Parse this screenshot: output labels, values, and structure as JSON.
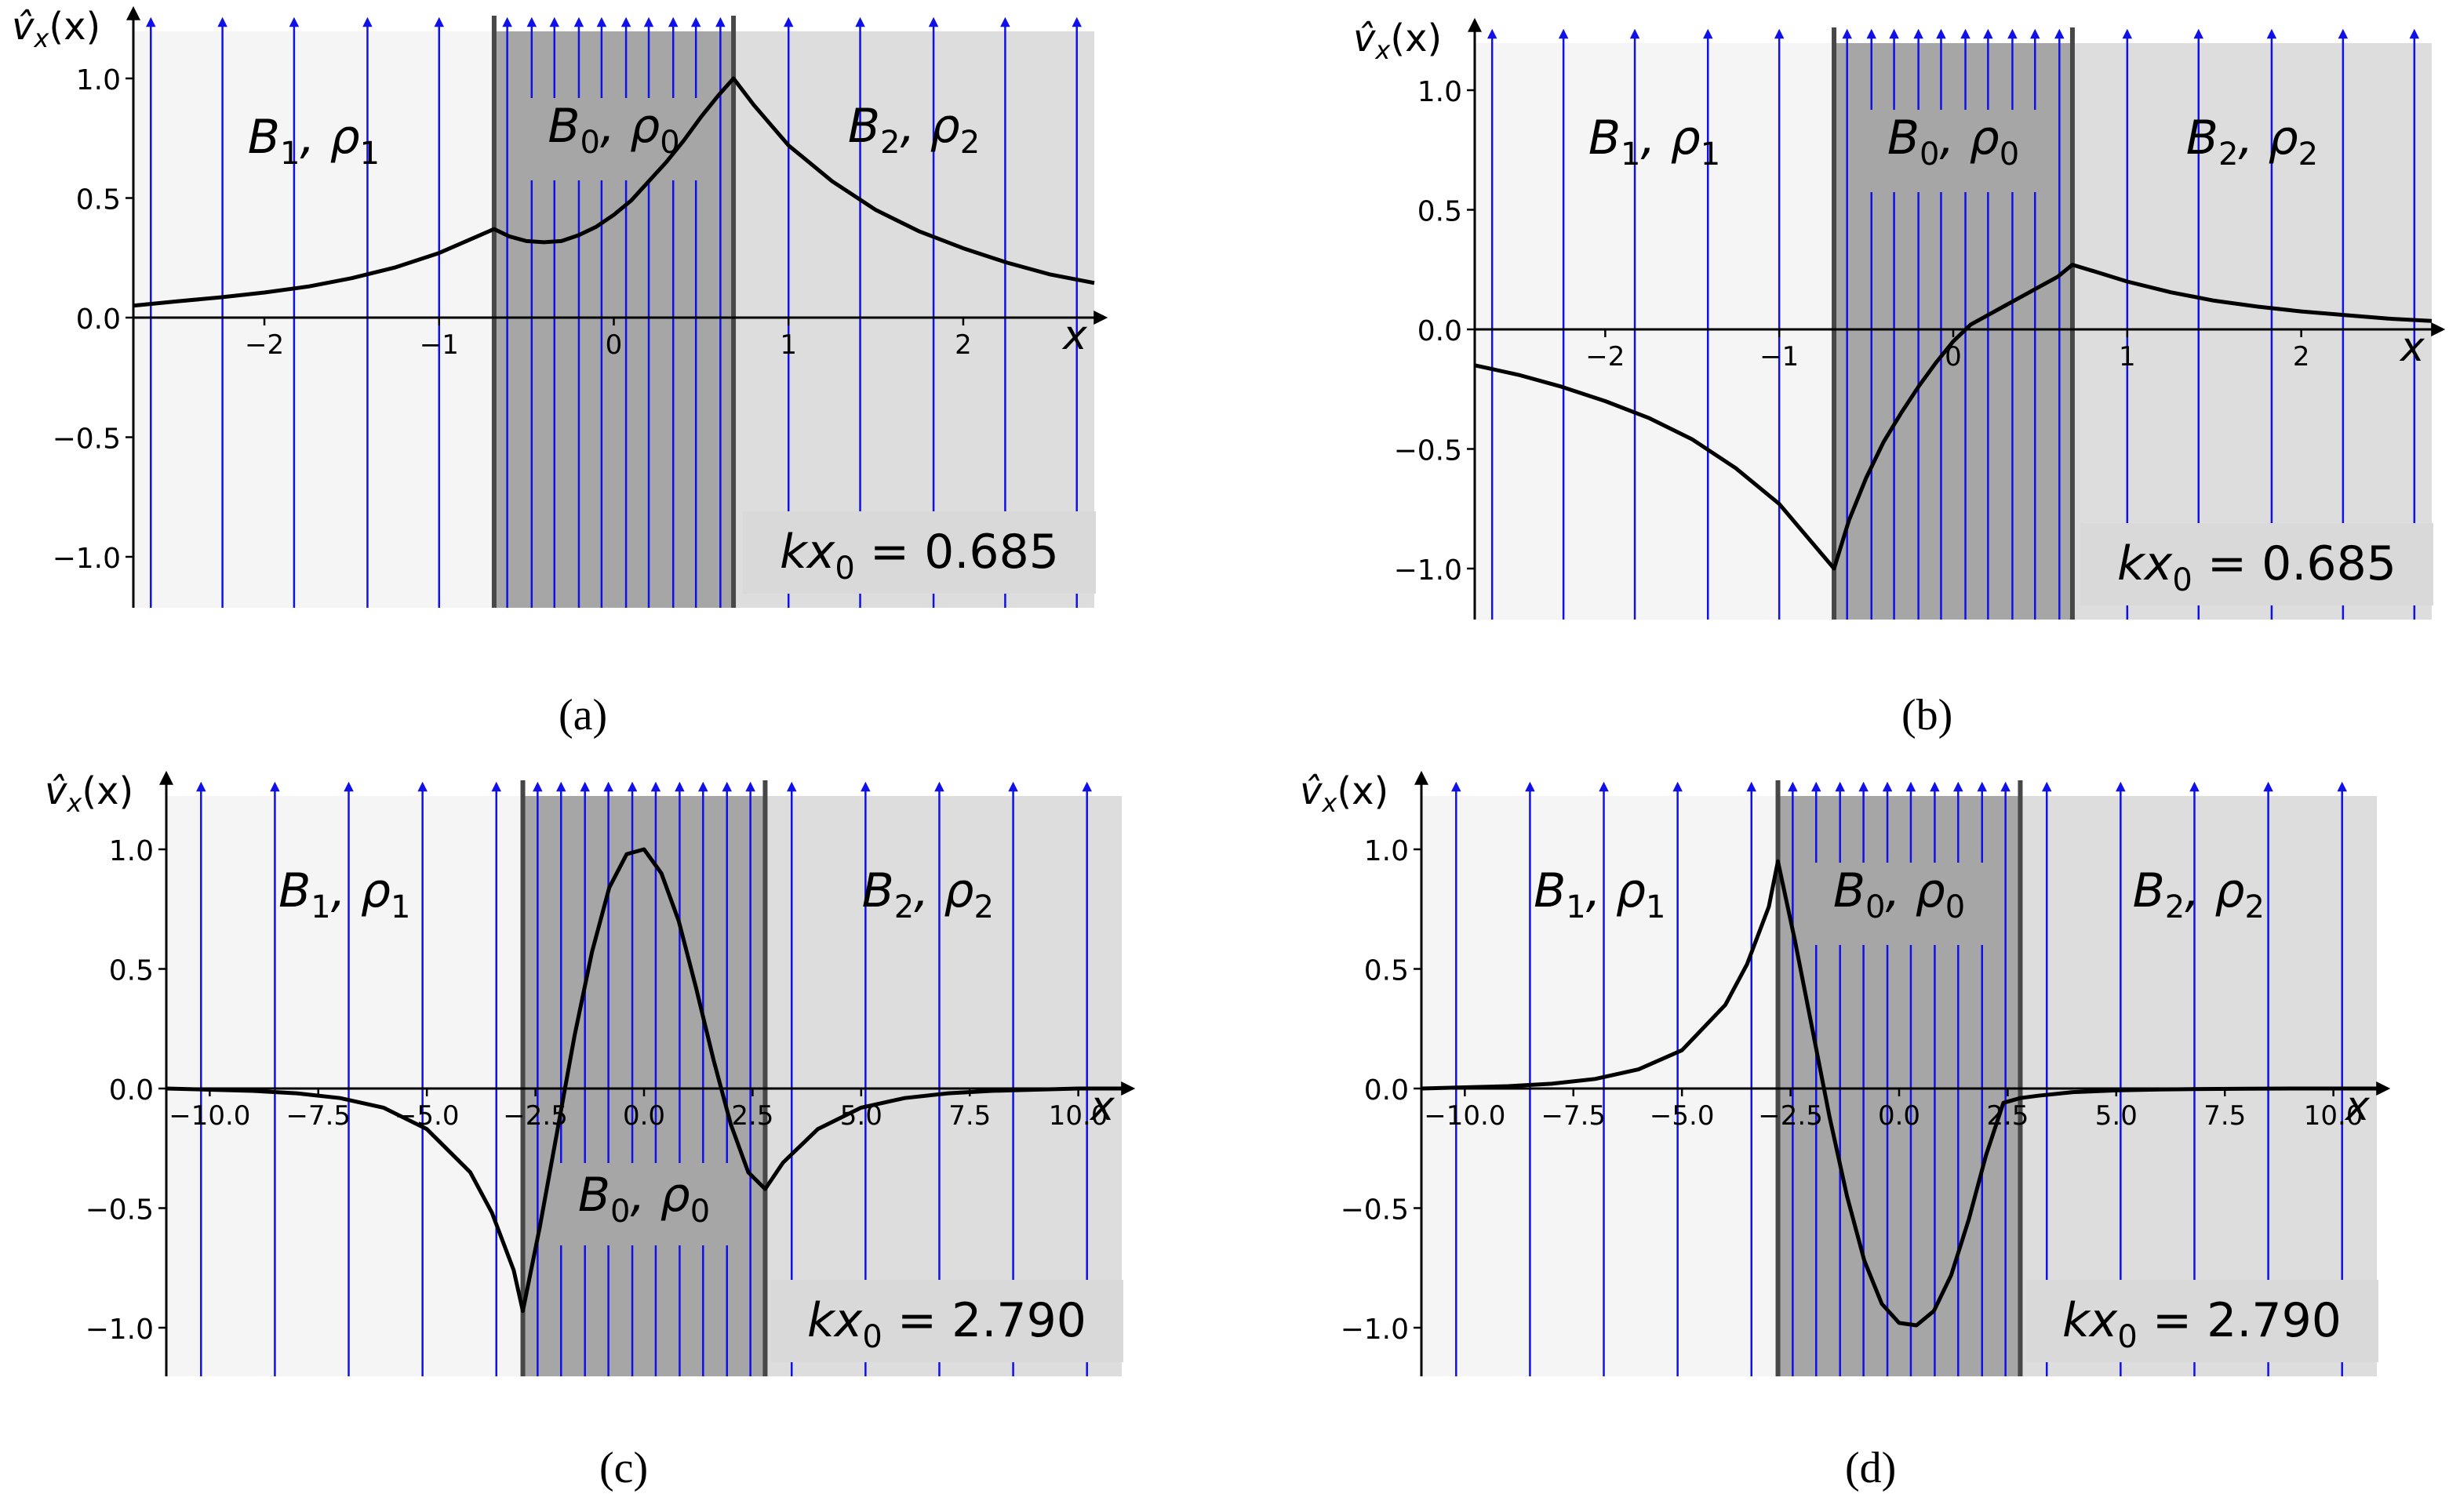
{
  "figure": {
    "captions": [
      "(a)",
      "(b)",
      "(c)",
      "(d)"
    ]
  },
  "colors": {
    "outer_left": "#f5f5f5",
    "outer_right": "#dddddd",
    "middle": "#a6a6a6",
    "field_line": "#1010e8",
    "curve": "#000000",
    "interface": "#474747",
    "kx_box": "#d9d9d9"
  },
  "chart_data": [
    {
      "id": "a",
      "type": "line",
      "ylabel": "v̂x(x)",
      "xlabel": "x",
      "region_labels": {
        "left": "B1, ρ1",
        "middle": "B0, ρ0",
        "right": "B2, ρ2"
      },
      "kx_label": "kx0 = 0.685",
      "xlim": [
        -2.75,
        2.75
      ],
      "ylim": [
        -1.2,
        1.2
      ],
      "interfaces": [
        -0.685,
        0.685
      ],
      "xticks": [
        -2,
        -1,
        0,
        1,
        2
      ],
      "xtick_labels": [
        "−2",
        "−1",
        "0",
        "1",
        "2"
      ],
      "yticks": [
        1.0,
        0.5,
        0.0,
        -0.5,
        -1.0
      ],
      "ytick_labels": [
        "1.0",
        "0.5",
        "0.0",
        "−0.5",
        "−1.0"
      ],
      "field_lines_outer": [
        -2.65,
        -2.24,
        -1.83,
        -1.41,
        -1.0,
        1.0,
        1.41,
        1.83,
        2.24,
        2.65
      ],
      "field_lines_inner": [
        -0.61,
        -0.47,
        -0.34,
        -0.2,
        -0.07,
        0.07,
        0.2,
        0.34,
        0.47,
        0.61
      ],
      "series": [
        {
          "name": "v̂x",
          "x": [
            -2.75,
            -2.5,
            -2.25,
            -2.0,
            -1.75,
            -1.5,
            -1.25,
            -1.0,
            -0.685,
            -0.6,
            -0.5,
            -0.4,
            -0.3,
            -0.2,
            -0.1,
            0.0,
            0.1,
            0.2,
            0.3,
            0.4,
            0.5,
            0.6,
            0.685,
            0.8,
            1.0,
            1.25,
            1.5,
            1.75,
            2.0,
            2.25,
            2.5,
            2.75
          ],
          "y": [
            0.05,
            0.068,
            0.085,
            0.105,
            0.13,
            0.165,
            0.21,
            0.27,
            0.37,
            0.34,
            0.32,
            0.315,
            0.32,
            0.345,
            0.38,
            0.43,
            0.49,
            0.57,
            0.65,
            0.74,
            0.84,
            0.93,
            1.0,
            0.89,
            0.72,
            0.57,
            0.45,
            0.36,
            0.29,
            0.23,
            0.18,
            0.145
          ]
        }
      ]
    },
    {
      "id": "b",
      "type": "line",
      "ylabel": "v̂x(x)",
      "xlabel": "x",
      "region_labels": {
        "left": "B1, ρ1",
        "middle": "B0, ρ0",
        "right": "B2, ρ2"
      },
      "kx_label": "kx0 = 0.685",
      "xlim": [
        -2.75,
        2.75
      ],
      "ylim": [
        -1.2,
        1.2
      ],
      "interfaces": [
        -0.685,
        0.685
      ],
      "xticks": [
        -2,
        -1,
        0,
        1,
        2
      ],
      "xtick_labels": [
        "−2",
        "−1",
        "0",
        "1",
        "2"
      ],
      "yticks": [
        1.0,
        0.5,
        0.0,
        -0.5,
        -1.0
      ],
      "ytick_labels": [
        "1.0",
        "0.5",
        "0.0",
        "−0.5",
        "−1.0"
      ],
      "field_lines_outer": [
        -2.65,
        -2.24,
        -1.83,
        -1.41,
        -1.0,
        1.0,
        1.41,
        1.83,
        2.24,
        2.65
      ],
      "field_lines_inner": [
        -0.61,
        -0.47,
        -0.34,
        -0.2,
        -0.07,
        0.07,
        0.2,
        0.34,
        0.47,
        0.61
      ],
      "series": [
        {
          "name": "v̂x",
          "x": [
            -2.75,
            -2.5,
            -2.25,
            -2.0,
            -1.75,
            -1.5,
            -1.25,
            -1.0,
            -0.685,
            -0.6,
            -0.5,
            -0.4,
            -0.3,
            -0.2,
            -0.1,
            0.0,
            0.1,
            0.2,
            0.3,
            0.4,
            0.5,
            0.6,
            0.685,
            0.8,
            1.0,
            1.25,
            1.5,
            1.75,
            2.0,
            2.25,
            2.5,
            2.75
          ],
          "y": [
            -0.15,
            -0.19,
            -0.24,
            -0.3,
            -0.37,
            -0.46,
            -0.58,
            -0.73,
            -1.0,
            -0.8,
            -0.62,
            -0.47,
            -0.35,
            -0.24,
            -0.14,
            -0.05,
            0.02,
            0.06,
            0.1,
            0.14,
            0.18,
            0.22,
            0.27,
            0.245,
            0.2,
            0.155,
            0.12,
            0.095,
            0.075,
            0.06,
            0.045,
            0.035
          ]
        }
      ]
    },
    {
      "id": "c",
      "type": "line",
      "ylabel": "v̂x(x)",
      "xlabel": "x",
      "region_labels": {
        "left": "B1, ρ1",
        "middle": "B0, ρ0",
        "right": "B2, ρ2"
      },
      "kx_label": "kx0 = 2.790",
      "xlim": [
        -11,
        11
      ],
      "ylim": [
        -1.2,
        1.2
      ],
      "interfaces": [
        -2.79,
        2.79
      ],
      "xticks": [
        -10,
        -7.5,
        -5,
        -2.5,
        0,
        2.5,
        5,
        7.5,
        10
      ],
      "xtick_labels": [
        "−10.0",
        "−7.5",
        "−5.0",
        "−2.5",
        "0.0",
        "2.5",
        "5.0",
        "7.5",
        "10.0"
      ],
      "yticks": [
        1.0,
        0.5,
        0.0,
        -0.5,
        -1.0
      ],
      "ytick_labels": [
        "1.0",
        "0.5",
        "0.0",
        "−0.5",
        "−1.0"
      ],
      "field_lines_outer": [
        -10.2,
        -8.5,
        -6.8,
        -5.1,
        -3.4,
        3.4,
        5.1,
        6.8,
        8.5,
        10.2
      ],
      "field_lines_inner": [
        -2.45,
        -1.91,
        -1.36,
        -0.82,
        -0.27,
        0.27,
        0.82,
        1.36,
        1.91,
        2.45
      ],
      "series": [
        {
          "name": "v̂x",
          "x": [
            -11,
            -10,
            -9,
            -8,
            -7,
            -6,
            -5,
            -4,
            -3.5,
            -3.0,
            -2.79,
            -2.4,
            -2.0,
            -1.6,
            -1.2,
            -0.8,
            -0.4,
            0.0,
            0.4,
            0.8,
            1.2,
            1.6,
            2.0,
            2.4,
            2.79,
            3.2,
            4.0,
            5.0,
            6.0,
            7.0,
            8.0,
            9.0,
            10.0,
            11.0
          ],
          "y": [
            0.0,
            -0.005,
            -0.01,
            -0.02,
            -0.04,
            -0.08,
            -0.17,
            -0.35,
            -0.52,
            -0.76,
            -0.93,
            -0.58,
            -0.18,
            0.22,
            0.57,
            0.84,
            0.98,
            1.0,
            0.9,
            0.7,
            0.42,
            0.12,
            -0.15,
            -0.35,
            -0.42,
            -0.31,
            -0.17,
            -0.08,
            -0.04,
            -0.02,
            -0.01,
            -0.005,
            0.0,
            0.0
          ]
        }
      ]
    },
    {
      "id": "d",
      "type": "line",
      "ylabel": "v̂x(x)",
      "xlabel": "x",
      "region_labels": {
        "left": "B1, ρ1",
        "middle": "B0, ρ0",
        "right": "B2, ρ2"
      },
      "kx_label": "kx0 = 2.790",
      "xlim": [
        -11,
        11
      ],
      "ylim": [
        -1.2,
        1.2
      ],
      "interfaces": [
        -2.79,
        2.79
      ],
      "xticks": [
        -10,
        -7.5,
        -5,
        -2.5,
        0,
        2.5,
        5,
        7.5,
        10
      ],
      "xtick_labels": [
        "−10.0",
        "−7.5",
        "−5.0",
        "−2.5",
        "0.0",
        "2.5",
        "5.0",
        "7.5",
        "10.0"
      ],
      "yticks": [
        1.0,
        0.5,
        0.0,
        -0.5,
        -1.0
      ],
      "ytick_labels": [
        "1.0",
        "0.5",
        "0.0",
        "−0.5",
        "−1.0"
      ],
      "field_lines_outer": [
        -10.2,
        -8.5,
        -6.8,
        -5.1,
        -3.4,
        3.4,
        5.1,
        6.8,
        8.5,
        10.2
      ],
      "field_lines_inner": [
        -2.45,
        -1.91,
        -1.36,
        -0.82,
        -0.27,
        0.27,
        0.82,
        1.36,
        1.91,
        2.45
      ],
      "series": [
        {
          "name": "v̂x",
          "x": [
            -11,
            -10,
            -9,
            -8,
            -7,
            -6,
            -5,
            -4,
            -3.5,
            -3.0,
            -2.79,
            -2.4,
            -2.0,
            -1.6,
            -1.2,
            -0.8,
            -0.4,
            0.0,
            0.4,
            0.8,
            1.2,
            1.6,
            2.0,
            2.4,
            2.79,
            3.2,
            4.0,
            5.0,
            6.0,
            7.0,
            8.0,
            9.0,
            10.0,
            11.0
          ],
          "y": [
            0.0,
            0.005,
            0.01,
            0.02,
            0.04,
            0.08,
            0.16,
            0.35,
            0.52,
            0.76,
            0.95,
            0.62,
            0.25,
            -0.12,
            -0.45,
            -0.72,
            -0.9,
            -0.98,
            -0.99,
            -0.93,
            -0.78,
            -0.55,
            -0.28,
            -0.06,
            -0.04,
            -0.03,
            -0.015,
            -0.008,
            -0.004,
            -0.002,
            -0.001,
            0.0,
            0.0,
            0.0
          ]
        }
      ]
    }
  ]
}
